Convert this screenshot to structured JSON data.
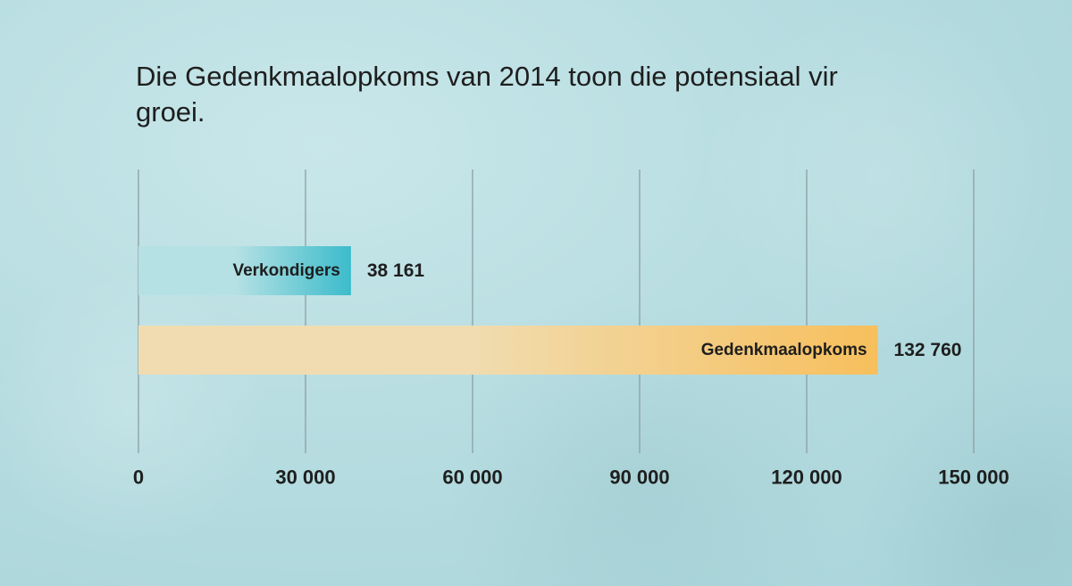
{
  "chart_data": {
    "type": "bar",
    "orientation": "horizontal",
    "title": "Die Gedenkmaalopkoms van 2014 toon die potensiaal vir groei.",
    "categories": [
      "Verkondigers",
      "Gedenkmaalopkoms"
    ],
    "values": [
      38161,
      132760
    ],
    "value_labels": [
      "38 161",
      "132 760"
    ],
    "xlim": [
      0,
      150000
    ],
    "xticks": [
      0,
      30000,
      60000,
      90000,
      120000,
      150000
    ],
    "xtick_labels": [
      "0",
      "30 000",
      "60 000",
      "90 000",
      "120 000",
      "150 000"
    ],
    "grid": true,
    "legend": "none",
    "colors": [
      "#3cbccb",
      "#f7bf5c"
    ],
    "colors_start": [
      "#b6e1e4",
      "#f0dcb0"
    ]
  }
}
